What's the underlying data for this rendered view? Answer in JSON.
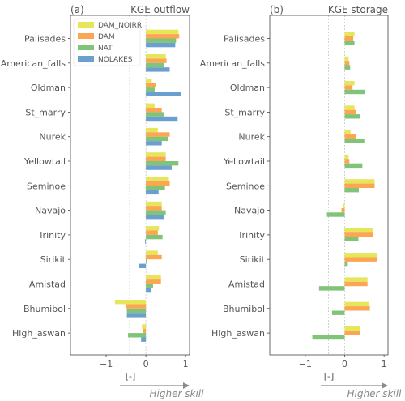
{
  "legend": [
    {
      "name": "DAM_NOIRR",
      "color": "#e6e65a"
    },
    {
      "name": "DAM",
      "color": "#fca552"
    },
    {
      "name": "NAT",
      "color": "#80c478"
    },
    {
      "name": "NOLAKES",
      "color": "#6b9fd0"
    }
  ],
  "xlabel": "[-]",
  "arrow_label": "Higher skill",
  "chart_data": [
    {
      "type": "bar",
      "orientation": "horizontal",
      "panel_label": "(a)",
      "title": "KGE outflow",
      "xlim": [
        -1.9,
        1.1
      ],
      "xticks": [
        -1,
        0,
        1
      ],
      "xtick_labels": [
        "−1",
        "0",
        "1"
      ],
      "reference_lines": [
        -0.41,
        0
      ],
      "categories": [
        "Palisades",
        "American_falls",
        "Oldman",
        "St_marry",
        "Nurek",
        "Yellowtail",
        "Seminoe",
        "Navajo",
        "Trinity",
        "Sirikit",
        "Amistad",
        "Bhumibol",
        "High_aswan"
      ],
      "series": [
        {
          "name": "DAM_NOIRR",
          "values": [
            0.82,
            0.5,
            0.15,
            0.22,
            0.3,
            0.5,
            0.58,
            0.4,
            0.33,
            0.3,
            0.38,
            -0.78,
            -0.1
          ]
        },
        {
          "name": "DAM",
          "values": [
            0.84,
            0.52,
            0.25,
            0.4,
            0.6,
            0.5,
            0.6,
            0.4,
            0.3,
            0.4,
            0.38,
            -0.5,
            -0.08
          ]
        },
        {
          "name": "NAT",
          "values": [
            0.76,
            0.45,
            0.22,
            0.45,
            0.55,
            0.82,
            0.48,
            0.5,
            0.42,
            0.02,
            0.18,
            -0.48,
            -0.45
          ]
        },
        {
          "name": "NOLAKES",
          "values": [
            0.74,
            0.6,
            0.88,
            0.8,
            0.4,
            0.65,
            0.32,
            0.45,
            -0.02,
            -0.18,
            0.14,
            -0.48,
            -0.12
          ]
        }
      ]
    },
    {
      "type": "bar",
      "orientation": "horizontal",
      "panel_label": "(b)",
      "title": "KGE storage",
      "xlim": [
        -1.9,
        1.1
      ],
      "xticks": [
        -1,
        0,
        1
      ],
      "xtick_labels": [
        "−1",
        "0",
        "1"
      ],
      "reference_lines": [
        -0.41,
        0
      ],
      "categories": [
        "Palisades",
        "American_falls",
        "Oldman",
        "St_marry",
        "Nurek",
        "Yellowtail",
        "Seminoe",
        "Navajo",
        "Trinity",
        "Sirikit",
        "Amistad",
        "Bhumibol",
        "High_aswan"
      ],
      "series": [
        {
          "name": "DAM_NOIRR",
          "values": [
            0.25,
            0.1,
            0.25,
            0.25,
            0.15,
            0.1,
            0.76,
            -0.04,
            0.72,
            0.82,
            0.58,
            0.62,
            0.38
          ]
        },
        {
          "name": "DAM",
          "values": [
            0.22,
            0.12,
            0.2,
            0.28,
            0.28,
            0.12,
            0.76,
            -0.08,
            0.72,
            0.82,
            0.58,
            0.64,
            0.38
          ]
        },
        {
          "name": "NAT",
          "values": [
            0.25,
            0.14,
            0.52,
            0.4,
            0.5,
            0.45,
            0.36,
            -0.45,
            0.35,
            0.08,
            -0.65,
            -0.32,
            -0.82
          ]
        }
      ]
    }
  ]
}
